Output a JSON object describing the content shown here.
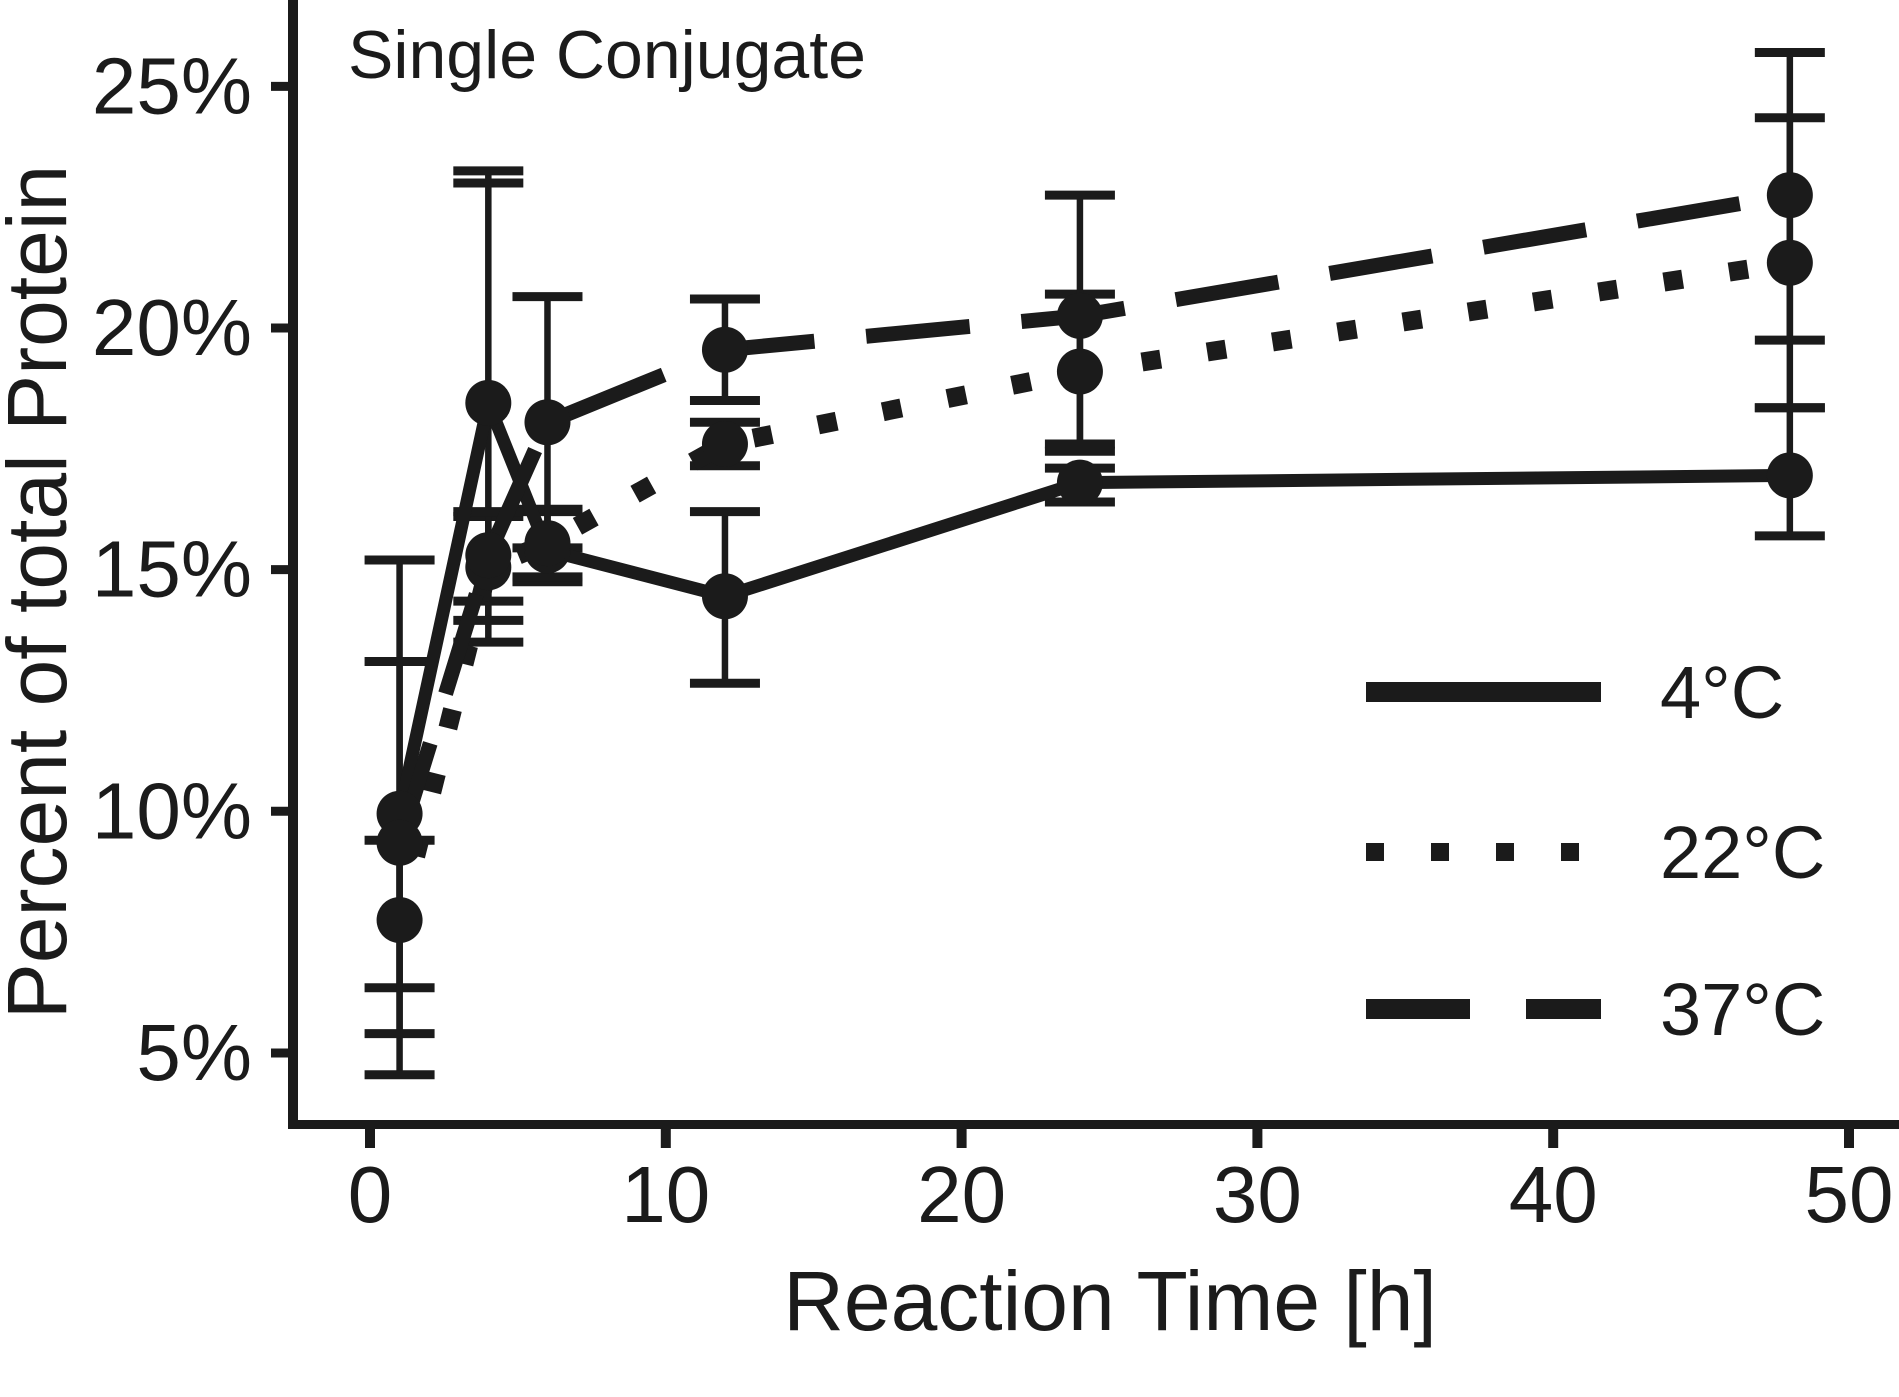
{
  "figure": {
    "background_color": "#ffffff",
    "ink_color": "#1b1b1b"
  },
  "chart_data": {
    "type": "line",
    "title": "Single Conjugate",
    "xlabel": "Reaction Time [h]",
    "ylabel": "Percent of total Protein",
    "grid": false,
    "legend_position": "lower right",
    "xlim": [
      -2.7,
      51.7
    ],
    "ylim": [
      3.5,
      26.8
    ],
    "x_ticks": [
      {
        "value": 0,
        "label": "0"
      },
      {
        "value": 10,
        "label": "10"
      },
      {
        "value": 20,
        "label": "20"
      },
      {
        "value": 30,
        "label": "30"
      },
      {
        "value": 40,
        "label": "40"
      },
      {
        "value": 50,
        "label": "50"
      }
    ],
    "y_ticks": [
      {
        "value": 25,
        "label": "25%"
      },
      {
        "value": 20,
        "label": "20%"
      },
      {
        "value": 15,
        "label": "15%"
      },
      {
        "value": 10,
        "label": "10%"
      },
      {
        "value": 5,
        "label": "5%"
      }
    ],
    "x": [
      1,
      4,
      6,
      12,
      24,
      48
    ],
    "series": [
      {
        "name": "4°C",
        "style": "solid",
        "marker": "circle",
        "points": [
          {
            "x": 1,
            "y": 9.95,
            "err_top": 15.2,
            "err_bottom": 4.55
          },
          {
            "x": 4,
            "y": 18.45,
            "err_top": 23.25,
            "err_bottom": 13.5
          },
          {
            "x": 6,
            "y": 15.4,
            "err_top": 16.2,
            "err_bottom": 14.75
          },
          {
            "x": 12,
            "y": 14.45,
            "err_top": 16.2,
            "err_bottom": 12.65
          },
          {
            "x": 24,
            "y": 16.8,
            "err_top": 17.1,
            "err_bottom": 16.4
          },
          {
            "x": 48,
            "y": 16.95,
            "err_top": 18.35,
            "err_bottom": 15.7
          }
        ]
      },
      {
        "name": "22°C",
        "style": "dotted",
        "marker": "circle",
        "points": [
          {
            "x": 1,
            "y": 7.75,
            "err_top": 9.4,
            "err_bottom": 6.35
          },
          {
            "x": 4,
            "y": 15.05,
            "err_top": 16.1,
            "err_bottom": 13.95
          },
          {
            "x": 6,
            "y": 15.55,
            "err_top": 16.25,
            "err_bottom": 14.85
          },
          {
            "x": 12,
            "y": 17.6,
            "err_top": 18.05,
            "err_bottom": 17.15
          },
          {
            "x": 24,
            "y": 19.1,
            "err_top": 20.7,
            "err_bottom": 17.45
          },
          {
            "x": 48,
            "y": 21.35,
            "err_top": 24.35,
            "err_bottom": 18.35
          }
        ]
      },
      {
        "name": "37°C",
        "style": "dashed",
        "marker": "circle",
        "points": [
          {
            "x": 1,
            "y": 9.35,
            "err_top": 13.1,
            "err_bottom": 5.4
          },
          {
            "x": 4,
            "y": 15.3,
            "err_top": 16.2,
            "err_bottom": 14.35
          },
          {
            "x": 6,
            "y": 18.05,
            "err_top": 20.65,
            "err_bottom": 15.45
          },
          {
            "x": 12,
            "y": 19.55,
            "err_top": 20.6,
            "err_bottom": 18.5
          },
          {
            "x": 24,
            "y": 20.25,
            "err_top": 22.75,
            "err_bottom": 17.6
          },
          {
            "x": 48,
            "y": 22.75,
            "err_top": 25.7,
            "err_bottom": 19.75
          }
        ]
      }
    ],
    "extra_caps": [
      {
        "x": 4,
        "y": 23.0
      }
    ]
  },
  "legend": {
    "entries": [
      {
        "label": "4°C",
        "style": "solid"
      },
      {
        "label": "22°C",
        "style": "dotted"
      },
      {
        "label": "37°C",
        "style": "dashed"
      }
    ]
  }
}
